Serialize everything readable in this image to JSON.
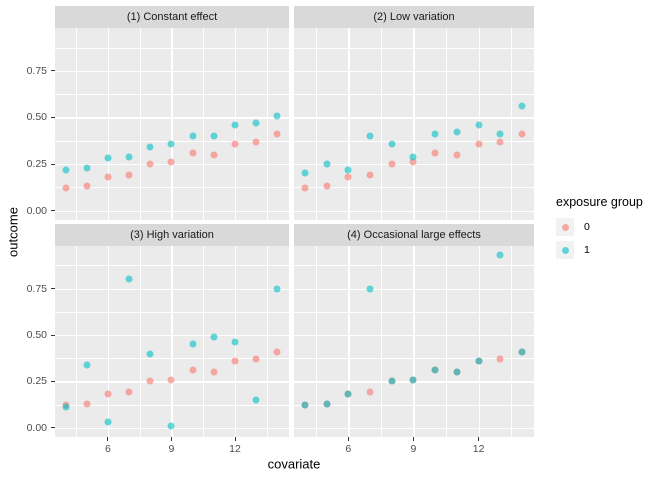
{
  "figure": {
    "colors": {
      "panel_background": "#EBEBEB",
      "strip_background": "#D9D9D9",
      "gridline": "#FFFFFF",
      "tick_text": "#4D4D4D",
      "group0": "#F8766D",
      "group1": "#00BFC4",
      "point_alpha": 0.6
    }
  },
  "chart_data": {
    "type": "scatter",
    "xlabel": "covariate",
    "ylabel": "outcome",
    "xlim": [
      3.5,
      14.55
    ],
    "ylim": [
      -0.05,
      0.98
    ],
    "x_tick_values": [
      6,
      9,
      12
    ],
    "x_tick_labels": [
      "6",
      "9",
      "12"
    ],
    "y_tick_values": [
      0,
      0.25,
      0.5,
      0.75
    ],
    "y_tick_labels": [
      "0.00",
      "0.25",
      "0.50",
      "0.75"
    ],
    "x_minor_gridlines": [
      4.5,
      7.5,
      10.5,
      13.5
    ],
    "y_minor_gridlines": [
      0.125,
      0.375,
      0.625,
      0.875
    ],
    "grid": true,
    "legend": {
      "title": "exposure group",
      "position": "right",
      "entries": [
        {
          "label": "0",
          "color": "#F8766D"
        },
        {
          "label": "1",
          "color": "#00BFC4"
        }
      ]
    },
    "x": [
      4,
      5,
      6,
      7,
      8,
      9,
      10,
      11,
      12,
      13,
      14
    ],
    "facets": [
      {
        "title": "(1) Constant effect",
        "series": [
          {
            "name": "0",
            "values": [
              0.12,
              0.13,
              0.18,
              0.19,
              0.25,
              0.26,
              0.31,
              0.3,
              0.36,
              0.37,
              0.41
            ]
          },
          {
            "name": "1",
            "values": [
              0.22,
              0.23,
              0.28,
              0.29,
              0.34,
              0.36,
              0.4,
              0.4,
              0.46,
              0.47,
              0.51
            ]
          }
        ]
      },
      {
        "title": "(2) Low variation",
        "series": [
          {
            "name": "0",
            "values": [
              0.12,
              0.13,
              0.18,
              0.19,
              0.25,
              0.26,
              0.31,
              0.3,
              0.36,
              0.37,
              0.41
            ]
          },
          {
            "name": "1",
            "values": [
              0.2,
              0.25,
              0.22,
              0.4,
              0.36,
              0.29,
              0.41,
              0.42,
              0.46,
              0.41,
              0.56
            ]
          }
        ]
      },
      {
        "title": "(3) High variation",
        "series": [
          {
            "name": "0",
            "values": [
              0.12,
              0.13,
              0.18,
              0.19,
              0.25,
              0.26,
              0.31,
              0.3,
              0.36,
              0.37,
              0.41
            ]
          },
          {
            "name": "1",
            "values": [
              0.11,
              0.34,
              0.03,
              0.8,
              0.4,
              0.01,
              0.45,
              0.49,
              0.46,
              0.15,
              0.75
            ]
          }
        ]
      },
      {
        "title": "(4) Occasional large effects",
        "series": [
          {
            "name": "0",
            "values": [
              0.12,
              0.13,
              0.18,
              0.19,
              0.25,
              0.26,
              0.31,
              0.3,
              0.36,
              0.37,
              0.41
            ]
          },
          {
            "name": "1",
            "values": [
              0.12,
              0.13,
              0.18,
              0.75,
              0.25,
              0.26,
              0.31,
              0.3,
              0.36,
              0.93,
              0.41
            ]
          }
        ]
      }
    ]
  }
}
